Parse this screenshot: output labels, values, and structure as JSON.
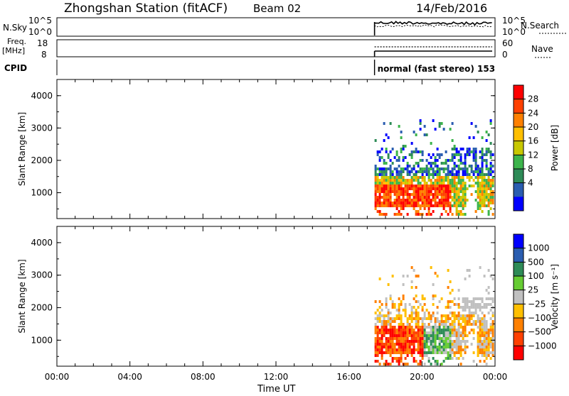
{
  "header": {
    "title": "Zhongshan Station (fitACF)",
    "beam": "Beam 02",
    "date": "14/Feb/2016"
  },
  "strips": {
    "nsky": {
      "label": "N.Sky",
      "ticks": [
        "10^5",
        "10^0"
      ]
    },
    "nsearch": {
      "label": "N.Search",
      "ticks": [
        "10^5",
        "10^0"
      ]
    },
    "freq": {
      "label": "Freq.",
      "unit": "[MHz]",
      "ticks": [
        "18",
        "8"
      ]
    },
    "nave": {
      "label": "Nave",
      "ticks": [
        "60",
        "0"
      ]
    },
    "cpid": {
      "label": "CPID",
      "text": "normal (fast stereo) 153"
    }
  },
  "chart_data": [
    {
      "type": "heatmap",
      "name": "Power",
      "ylabel": "Slant Range [km]",
      "yticks": [
        "4000",
        "3000",
        "2000",
        "1000"
      ],
      "yticks_values": [
        4000,
        3000,
        2000,
        1000
      ],
      "ylim": [
        200,
        4500
      ],
      "xlim_hours": [
        0,
        24
      ],
      "xticks": [
        "00:00",
        "04:00",
        "08:00",
        "12:00",
        "16:00",
        "20:00",
        "00:00"
      ],
      "colorbar": {
        "label": "Power [dB]",
        "ticks": [
          "28",
          "24",
          "20",
          "16",
          "12",
          "8",
          "4"
        ],
        "colors": [
          "#ff0000",
          "#ff4000",
          "#ff8000",
          "#ffbf00",
          "#c8c800",
          "#3cb44b",
          "#2e8b57",
          "#2a5db0",
          "#0000ff"
        ]
      },
      "data_extent_hours": [
        17.4,
        24
      ]
    },
    {
      "type": "heatmap",
      "name": "Velocity",
      "ylabel": "Slant Range [km]",
      "yticks": [
        "4000",
        "3000",
        "2000",
        "1000"
      ],
      "yticks_values": [
        4000,
        3000,
        2000,
        1000
      ],
      "ylim": [
        200,
        4500
      ],
      "xlim_hours": [
        0,
        24
      ],
      "xticks": [
        "00:00",
        "04:00",
        "08:00",
        "12:00",
        "16:00",
        "20:00",
        "00:00"
      ],
      "xlabel": "Time UT",
      "colorbar": {
        "label": "Velocity",
        "unit": "[m s⁻¹]",
        "ticks": [
          "1000",
          "500",
          "100",
          "25",
          "−25",
          "−100",
          "−500",
          "−1000"
        ],
        "colors": [
          "#0000ff",
          "#2a5db0",
          "#2e8b57",
          "#66cc33",
          "#c0c0c0",
          "#ffbf00",
          "#ff8000",
          "#ff4000",
          "#ff0000"
        ]
      },
      "data_extent_hours": [
        17.4,
        24
      ]
    }
  ]
}
